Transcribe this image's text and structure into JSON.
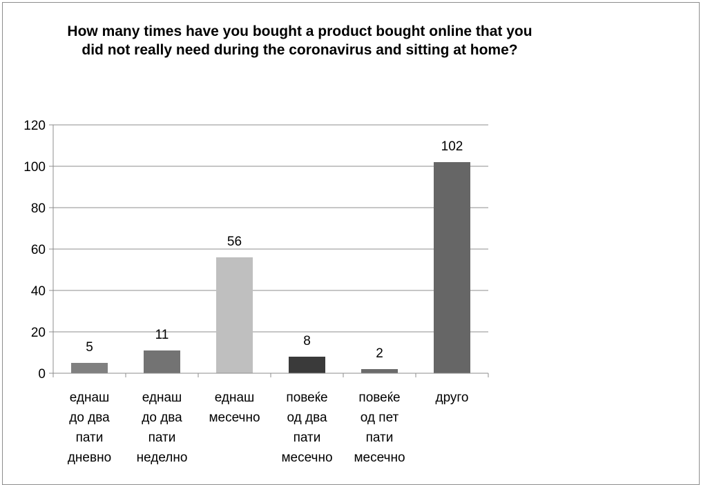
{
  "chart_data": {
    "type": "bar",
    "title": "How many times have you bought a product bought online that you did not really need during the coronavirus and sitting at home?",
    "categories": [
      "еднаш до два пати дневно",
      "еднаш до два пати неделно",
      "еднаш месечно",
      "повеќе од два пати месечно",
      "повеќе од пет пати месечно",
      "друго"
    ],
    "category_lines": [
      [
        "еднаш",
        "до два",
        "пати",
        "дневно"
      ],
      [
        "еднаш",
        "до два",
        "пати",
        "неделно"
      ],
      [
        "еднаш",
        "месечно"
      ],
      [
        "повеќе",
        "од два",
        "пати",
        "месечно"
      ],
      [
        "повеќе",
        "од пет",
        "пати",
        "месечно"
      ],
      [
        "друго"
      ]
    ],
    "values": [
      5,
      11,
      56,
      8,
      2,
      102
    ],
    "bar_colors": [
      "#808080",
      "#737373",
      "#bfbfbf",
      "#3a3a3a",
      "#6b6b6b",
      "#666666"
    ],
    "ylim": [
      0,
      120
    ],
    "yticks": [
      0,
      20,
      40,
      60,
      80,
      100,
      120
    ],
    "grid": true,
    "legend": "none",
    "data_labels": true
  }
}
